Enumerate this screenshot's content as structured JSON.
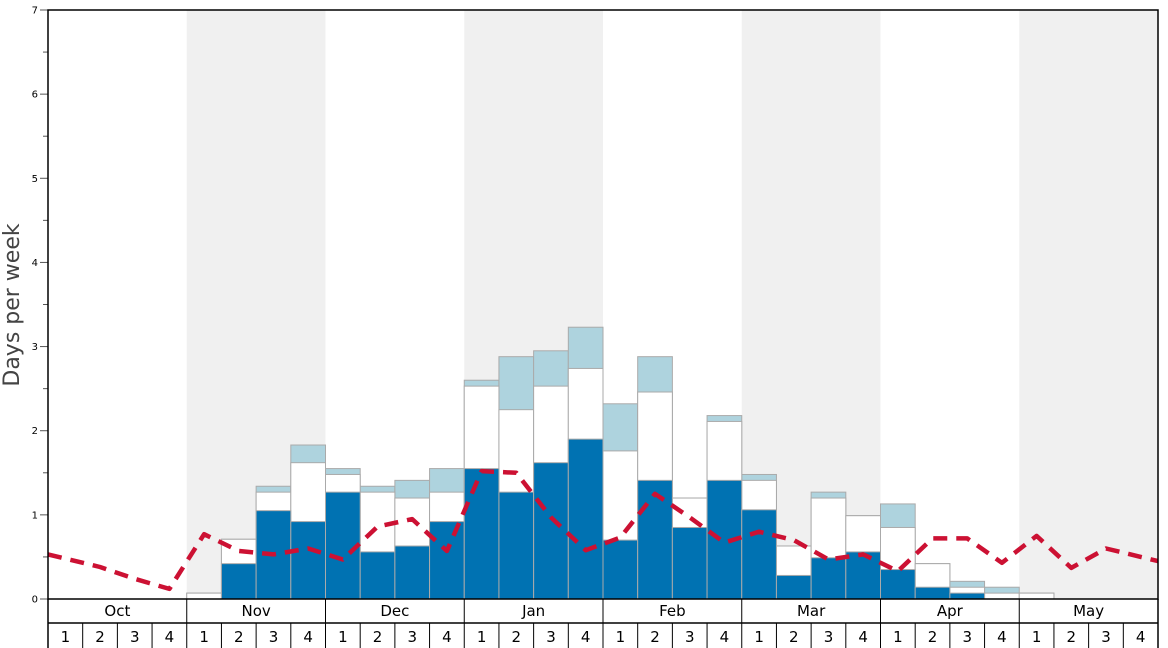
{
  "chart_data": {
    "type": "bar",
    "ylabel": "Days per week",
    "ylim": [
      0,
      7
    ],
    "yticks": [
      "0",
      "1",
      "2",
      "3",
      "4",
      "5",
      "6",
      "7"
    ],
    "months": [
      "Oct",
      "Nov",
      "Dec",
      "Jan",
      "Feb",
      "Mar",
      "Apr",
      "May"
    ],
    "weeks": [
      "1",
      "2",
      "3",
      "4"
    ],
    "shaded_months": [
      "Nov",
      "Jan",
      "Mar",
      "May"
    ],
    "colors": {
      "dark": "#0072b2",
      "white": "#ffffff",
      "light": "#aed3de",
      "line": "#cc1133",
      "shade": "#f0f0f0",
      "bar_edge": "#aaaaaa"
    },
    "series": [
      {
        "values": [
          0,
          0,
          0,
          0,
          0,
          0.42,
          1.05,
          0.92,
          1.27,
          0.56,
          0.63,
          0.92,
          1.55,
          1.27,
          1.62,
          1.9,
          0.7,
          1.41,
          0.85,
          1.41,
          1.06,
          0.28,
          0.49,
          0.56,
          0.35,
          0.14,
          0.07,
          0,
          0,
          0,
          0,
          0
        ]
      },
      {
        "values": [
          0,
          0,
          0,
          0,
          0.07,
          0.71,
          1.27,
          1.62,
          1.48,
          1.27,
          1.2,
          1.27,
          2.53,
          2.25,
          2.53,
          2.74,
          1.76,
          2.46,
          1.2,
          2.11,
          1.41,
          0.63,
          1.2,
          0.99,
          0.85,
          0.42,
          0.14,
          0.07,
          0.07,
          0,
          0,
          0
        ]
      },
      {
        "values": [
          0,
          0,
          0,
          0,
          0.07,
          0.71,
          1.34,
          1.83,
          1.55,
          1.34,
          1.41,
          1.55,
          2.6,
          2.88,
          2.95,
          3.23,
          2.32,
          2.88,
          1.2,
          2.18,
          1.48,
          0.63,
          1.27,
          0.99,
          1.13,
          0.42,
          0.21,
          0.14,
          0.07,
          0,
          0,
          0
        ]
      },
      {
        "type": "line",
        "values": [
          0.53,
          0.38,
          0.24,
          0.12,
          0.77,
          0.57,
          0.53,
          0.6,
          0.47,
          0.86,
          0.95,
          0.57,
          1.52,
          1.5,
          0.97,
          0.58,
          0.73,
          1.25,
          0.97,
          0.67,
          0.8,
          0.7,
          0.47,
          0.53,
          0.33,
          0.72,
          0.72,
          0.43,
          0.75,
          0.37,
          0.6,
          0.45
        ]
      }
    ]
  }
}
